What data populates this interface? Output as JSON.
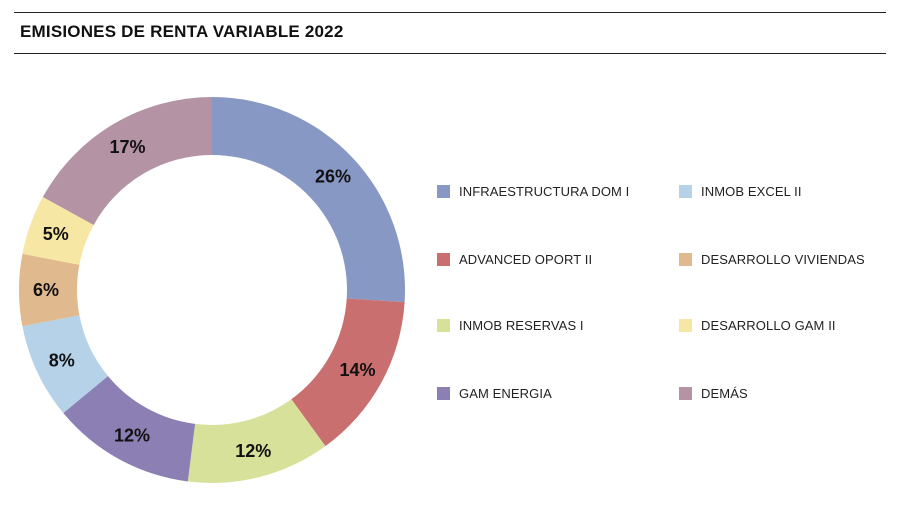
{
  "page": {
    "title": "EMISIONES DE RENTA VARIABLE 2022"
  },
  "chart_data": {
    "type": "pie",
    "variant": "donut",
    "title": "EMISIONES DE RENTA VARIABLE 2022",
    "legend_position": "right",
    "value_unit": "%",
    "slices": [
      {
        "name": "INFRAESTRUCTURA DOM I",
        "value": 26,
        "label": "26%",
        "color": "#8798c4"
      },
      {
        "name": "ADVANCED OPORT II",
        "value": 14,
        "label": "14%",
        "color": "#c96f6f"
      },
      {
        "name": "INMOB RESERVAS I",
        "value": 12,
        "label": "12%",
        "color": "#d8e19a"
      },
      {
        "name": "GAM ENERGIA",
        "value": 12,
        "label": "12%",
        "color": "#8c7fb4"
      },
      {
        "name": "INMOB EXCEL II",
        "value": 8,
        "label": "8%",
        "color": "#b6d2e8"
      },
      {
        "name": "DESARROLLO VIVIENDAS",
        "value": 6,
        "label": "6%",
        "color": "#e1b98e"
      },
      {
        "name": "DESARROLLO GAM II",
        "value": 5,
        "label": "5%",
        "color": "#f6e7a4"
      },
      {
        "name": "DEMÁS",
        "value": 17,
        "label": "17%",
        "color": "#b493a5"
      }
    ],
    "legend_order": [
      "INFRAESTRUCTURA DOM I",
      "INMOB EXCEL II",
      "ADVANCED OPORT II",
      "DESARROLLO VIVIENDAS",
      "INMOB RESERVAS I",
      "DESARROLLO GAM II",
      "GAM ENERGIA",
      "DEMÁS"
    ]
  }
}
